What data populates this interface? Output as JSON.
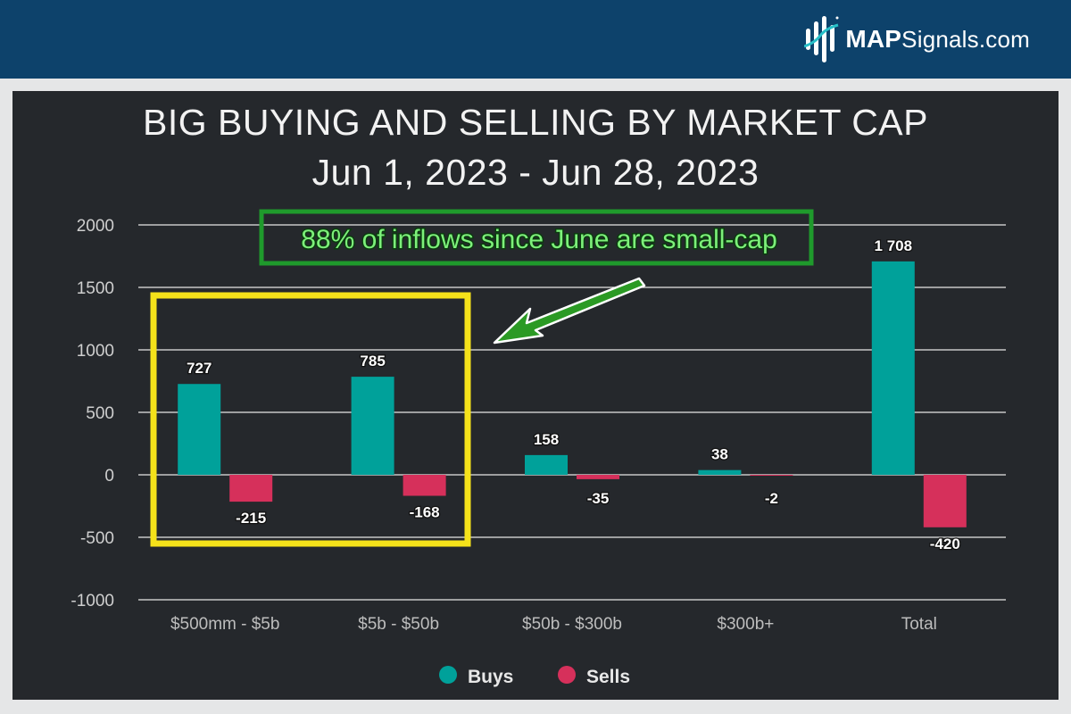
{
  "brand": {
    "name_bold": "MAP",
    "name_rest": "Signals.com",
    "icon": "map-signals-logo-icon"
  },
  "chart_data": {
    "type": "bar",
    "title": "BIG BUYING AND SELLING BY MARKET CAP",
    "subtitle": "Jun 1, 2023 - Jun 28, 2023",
    "categories": [
      "$500mm - $5b",
      "$5b - $50b",
      "$50b - $300b",
      "$300b+",
      "Total"
    ],
    "series": [
      {
        "name": "Buys",
        "color": "#00a19a",
        "values": [
          727,
          785,
          158,
          38,
          1708
        ],
        "labels": [
          "727",
          "785",
          "158",
          "38",
          "1 708"
        ]
      },
      {
        "name": "Sells",
        "color": "#d6305b",
        "values": [
          -215,
          -168,
          -35,
          -2,
          -420
        ],
        "labels": [
          "-215",
          "-168",
          "-35",
          "-2",
          "-420"
        ]
      }
    ],
    "ylim": [
      -1000,
      2000
    ],
    "yticks": [
      2000,
      1500,
      1000,
      500,
      0,
      -500,
      -1000
    ],
    "ytick_labels": [
      "2000",
      "1500",
      "1000",
      "500",
      "0",
      "-500",
      "-1000"
    ],
    "grid": true,
    "legend_position": "bottom",
    "xlabel": "",
    "ylabel": "",
    "annotation": {
      "text": "88% of inflows since June are small-cap",
      "text_color": "#7df07a",
      "box_color": "#1f9a2c",
      "arrow_color": "#2b9a24",
      "highlight_color": "#f5e21a",
      "highlight_categories": [
        "$500mm - $5b",
        "$5b - $50b"
      ]
    }
  }
}
